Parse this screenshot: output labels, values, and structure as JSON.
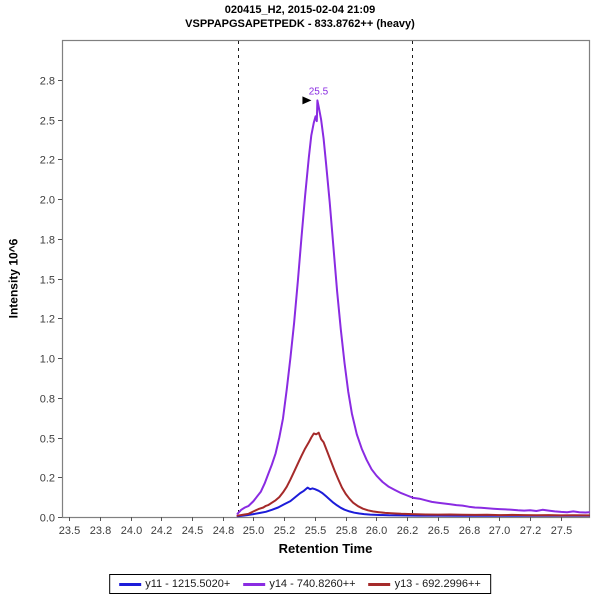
{
  "chart_data": {
    "type": "line",
    "title": "020415_H2, 2015-02-04 21:09",
    "subtitle": "VSPPAPGSAPETPEDK - 833.8762++ (heavy)",
    "xlabel": "Retention Time",
    "ylabel": "Intensity 10^6",
    "xlim": [
      23.443,
      27.728
    ],
    "ylim": [
      0,
      3.0
    ],
    "grid": false,
    "legend_position": "bottom",
    "x_ticks": [
      {
        "value": 23.5,
        "label": "23.5"
      },
      {
        "value": 23.75,
        "label": "23.8"
      },
      {
        "value": 24.0,
        "label": "24.0"
      },
      {
        "value": 24.25,
        "label": "24.2"
      },
      {
        "value": 24.5,
        "label": "24.5"
      },
      {
        "value": 24.75,
        "label": "24.8"
      },
      {
        "value": 25.0,
        "label": "25.0"
      },
      {
        "value": 25.25,
        "label": "25.2"
      },
      {
        "value": 25.5,
        "label": "25.5"
      },
      {
        "value": 25.75,
        "label": "25.8"
      },
      {
        "value": 26.0,
        "label": "26.0"
      },
      {
        "value": 26.25,
        "label": "26.2"
      },
      {
        "value": 26.5,
        "label": "26.5"
      },
      {
        "value": 26.75,
        "label": "26.8"
      },
      {
        "value": 27.0,
        "label": "27.0"
      },
      {
        "value": 27.25,
        "label": "27.2"
      },
      {
        "value": 27.5,
        "label": "27.5"
      }
    ],
    "y_ticks": [
      {
        "value": 0.0,
        "label": "0.0"
      },
      {
        "value": 0.25,
        "label": "0.2"
      },
      {
        "value": 0.5,
        "label": "0.5"
      },
      {
        "value": 0.75,
        "label": "0.8"
      },
      {
        "value": 1.0,
        "label": "1.0"
      },
      {
        "value": 1.25,
        "label": "1.2"
      },
      {
        "value": 1.5,
        "label": "1.5"
      },
      {
        "value": 1.75,
        "label": "1.8"
      },
      {
        "value": 2.0,
        "label": "2.0"
      },
      {
        "value": 2.25,
        "label": "2.2"
      },
      {
        "value": 2.5,
        "label": "2.5"
      },
      {
        "value": 2.75,
        "label": "2.8"
      }
    ],
    "integration_boundaries": [
      24.87,
      26.29
    ],
    "peak_annotation": {
      "label": "25.5",
      "x": 25.52,
      "y": 2.62,
      "color": "#8a2be2"
    },
    "colors": {
      "frame": "#808080",
      "tick": "#555555",
      "tick_text": "#3d3d3d",
      "boundary": "#1a1a1a",
      "arrow": "#000000"
    },
    "draw_order": [
      0,
      2,
      1
    ],
    "series": [
      {
        "id": "y11",
        "name": "y11 - 1215.5020+",
        "color": "#1c1cd9",
        "points": [
          [
            24.87,
            0.005
          ],
          [
            24.95,
            0.012
          ],
          [
            25.0,
            0.018
          ],
          [
            25.05,
            0.025
          ],
          [
            25.1,
            0.033
          ],
          [
            25.15,
            0.045
          ],
          [
            25.2,
            0.06
          ],
          [
            25.25,
            0.08
          ],
          [
            25.3,
            0.1
          ],
          [
            25.34,
            0.125
          ],
          [
            25.38,
            0.15
          ],
          [
            25.41,
            0.165
          ],
          [
            25.44,
            0.185
          ],
          [
            25.46,
            0.175
          ],
          [
            25.48,
            0.18
          ],
          [
            25.5,
            0.175
          ],
          [
            25.53,
            0.165
          ],
          [
            25.56,
            0.15
          ],
          [
            25.59,
            0.13
          ],
          [
            25.62,
            0.11
          ],
          [
            25.65,
            0.09
          ],
          [
            25.68,
            0.073
          ],
          [
            25.71,
            0.058
          ],
          [
            25.74,
            0.046
          ],
          [
            25.78,
            0.035
          ],
          [
            25.82,
            0.027
          ],
          [
            25.86,
            0.022
          ],
          [
            25.9,
            0.018
          ],
          [
            25.95,
            0.015
          ],
          [
            26.0,
            0.013
          ],
          [
            26.1,
            0.011
          ],
          [
            26.2,
            0.01
          ],
          [
            26.35,
            0.009
          ],
          [
            26.5,
            0.009
          ],
          [
            26.7,
            0.008
          ],
          [
            26.9,
            0.008
          ],
          [
            27.1,
            0.008
          ],
          [
            27.3,
            0.008
          ],
          [
            27.5,
            0.008
          ],
          [
            27.728,
            0.008
          ]
        ]
      },
      {
        "id": "y14",
        "name": "y14 - 740.8260++",
        "color": "#8a2be2",
        "points": [
          [
            24.87,
            0.02
          ],
          [
            24.9,
            0.045
          ],
          [
            24.93,
            0.06
          ],
          [
            24.96,
            0.07
          ],
          [
            25.0,
            0.1
          ],
          [
            25.03,
            0.13
          ],
          [
            25.06,
            0.16
          ],
          [
            25.09,
            0.21
          ],
          [
            25.12,
            0.27
          ],
          [
            25.15,
            0.33
          ],
          [
            25.18,
            0.4
          ],
          [
            25.21,
            0.5
          ],
          [
            25.24,
            0.62
          ],
          [
            25.27,
            0.8
          ],
          [
            25.3,
            1.0
          ],
          [
            25.33,
            1.22
          ],
          [
            25.36,
            1.48
          ],
          [
            25.39,
            1.76
          ],
          [
            25.42,
            2.02
          ],
          [
            25.45,
            2.26
          ],
          [
            25.47,
            2.4
          ],
          [
            25.49,
            2.48
          ],
          [
            25.505,
            2.52
          ],
          [
            25.515,
            2.49
          ],
          [
            25.52,
            2.62
          ],
          [
            25.53,
            2.58
          ],
          [
            25.55,
            2.5
          ],
          [
            25.57,
            2.38
          ],
          [
            25.59,
            2.22
          ],
          [
            25.62,
            1.98
          ],
          [
            25.65,
            1.7
          ],
          [
            25.68,
            1.42
          ],
          [
            25.71,
            1.18
          ],
          [
            25.74,
            0.97
          ],
          [
            25.77,
            0.79
          ],
          [
            25.8,
            0.65
          ],
          [
            25.84,
            0.52
          ],
          [
            25.88,
            0.43
          ],
          [
            25.92,
            0.36
          ],
          [
            25.96,
            0.3
          ],
          [
            26.0,
            0.26
          ],
          [
            26.05,
            0.22
          ],
          [
            26.1,
            0.19
          ],
          [
            26.15,
            0.17
          ],
          [
            26.2,
            0.15
          ],
          [
            26.25,
            0.135
          ],
          [
            26.3,
            0.12
          ],
          [
            26.35,
            0.115
          ],
          [
            26.4,
            0.105
          ],
          [
            26.45,
            0.095
          ],
          [
            26.5,
            0.09
          ],
          [
            26.55,
            0.085
          ],
          [
            26.6,
            0.08
          ],
          [
            26.65,
            0.075
          ],
          [
            26.7,
            0.072
          ],
          [
            26.75,
            0.065
          ],
          [
            26.8,
            0.06
          ],
          [
            26.85,
            0.058
          ],
          [
            26.9,
            0.055
          ],
          [
            26.95,
            0.052
          ],
          [
            27.0,
            0.05
          ],
          [
            27.05,
            0.048
          ],
          [
            27.1,
            0.045
          ],
          [
            27.15,
            0.042
          ],
          [
            27.2,
            0.04
          ],
          [
            27.25,
            0.042
          ],
          [
            27.3,
            0.038
          ],
          [
            27.35,
            0.045
          ],
          [
            27.4,
            0.04
          ],
          [
            27.45,
            0.035
          ],
          [
            27.5,
            0.032
          ],
          [
            27.55,
            0.03
          ],
          [
            27.6,
            0.035
          ],
          [
            27.65,
            0.03
          ],
          [
            27.7,
            0.028
          ],
          [
            27.728,
            0.03
          ]
        ]
      },
      {
        "id": "y13",
        "name": "y13 - 692.2996++",
        "color": "#a52a2a",
        "points": [
          [
            24.87,
            0.008
          ],
          [
            24.92,
            0.015
          ],
          [
            24.96,
            0.02
          ],
          [
            25.0,
            0.035
          ],
          [
            25.04,
            0.05
          ],
          [
            25.08,
            0.06
          ],
          [
            25.1,
            0.07
          ],
          [
            25.12,
            0.075
          ],
          [
            25.15,
            0.09
          ],
          [
            25.18,
            0.105
          ],
          [
            25.21,
            0.125
          ],
          [
            25.24,
            0.155
          ],
          [
            25.27,
            0.19
          ],
          [
            25.3,
            0.235
          ],
          [
            25.33,
            0.285
          ],
          [
            25.36,
            0.335
          ],
          [
            25.39,
            0.385
          ],
          [
            25.42,
            0.43
          ],
          [
            25.45,
            0.47
          ],
          [
            25.47,
            0.5
          ],
          [
            25.49,
            0.525
          ],
          [
            25.51,
            0.52
          ],
          [
            25.53,
            0.53
          ],
          [
            25.55,
            0.49
          ],
          [
            25.57,
            0.47
          ],
          [
            25.6,
            0.41
          ],
          [
            25.63,
            0.35
          ],
          [
            25.66,
            0.29
          ],
          [
            25.69,
            0.235
          ],
          [
            25.72,
            0.185
          ],
          [
            25.75,
            0.145
          ],
          [
            25.78,
            0.115
          ],
          [
            25.81,
            0.09
          ],
          [
            25.85,
            0.068
          ],
          [
            25.89,
            0.052
          ],
          [
            25.93,
            0.042
          ],
          [
            25.97,
            0.035
          ],
          [
            26.02,
            0.03
          ],
          [
            26.07,
            0.026
          ],
          [
            26.12,
            0.024
          ],
          [
            26.2,
            0.02
          ],
          [
            26.29,
            0.018
          ],
          [
            26.4,
            0.016
          ],
          [
            26.5,
            0.015
          ],
          [
            26.6,
            0.016
          ],
          [
            26.7,
            0.014
          ],
          [
            26.8,
            0.013
          ],
          [
            26.9,
            0.014
          ],
          [
            27.0,
            0.012
          ],
          [
            27.1,
            0.013
          ],
          [
            27.2,
            0.012
          ],
          [
            27.3,
            0.011
          ],
          [
            27.4,
            0.012
          ],
          [
            27.5,
            0.01
          ],
          [
            27.6,
            0.011
          ],
          [
            27.728,
            0.01
          ]
        ]
      }
    ]
  }
}
